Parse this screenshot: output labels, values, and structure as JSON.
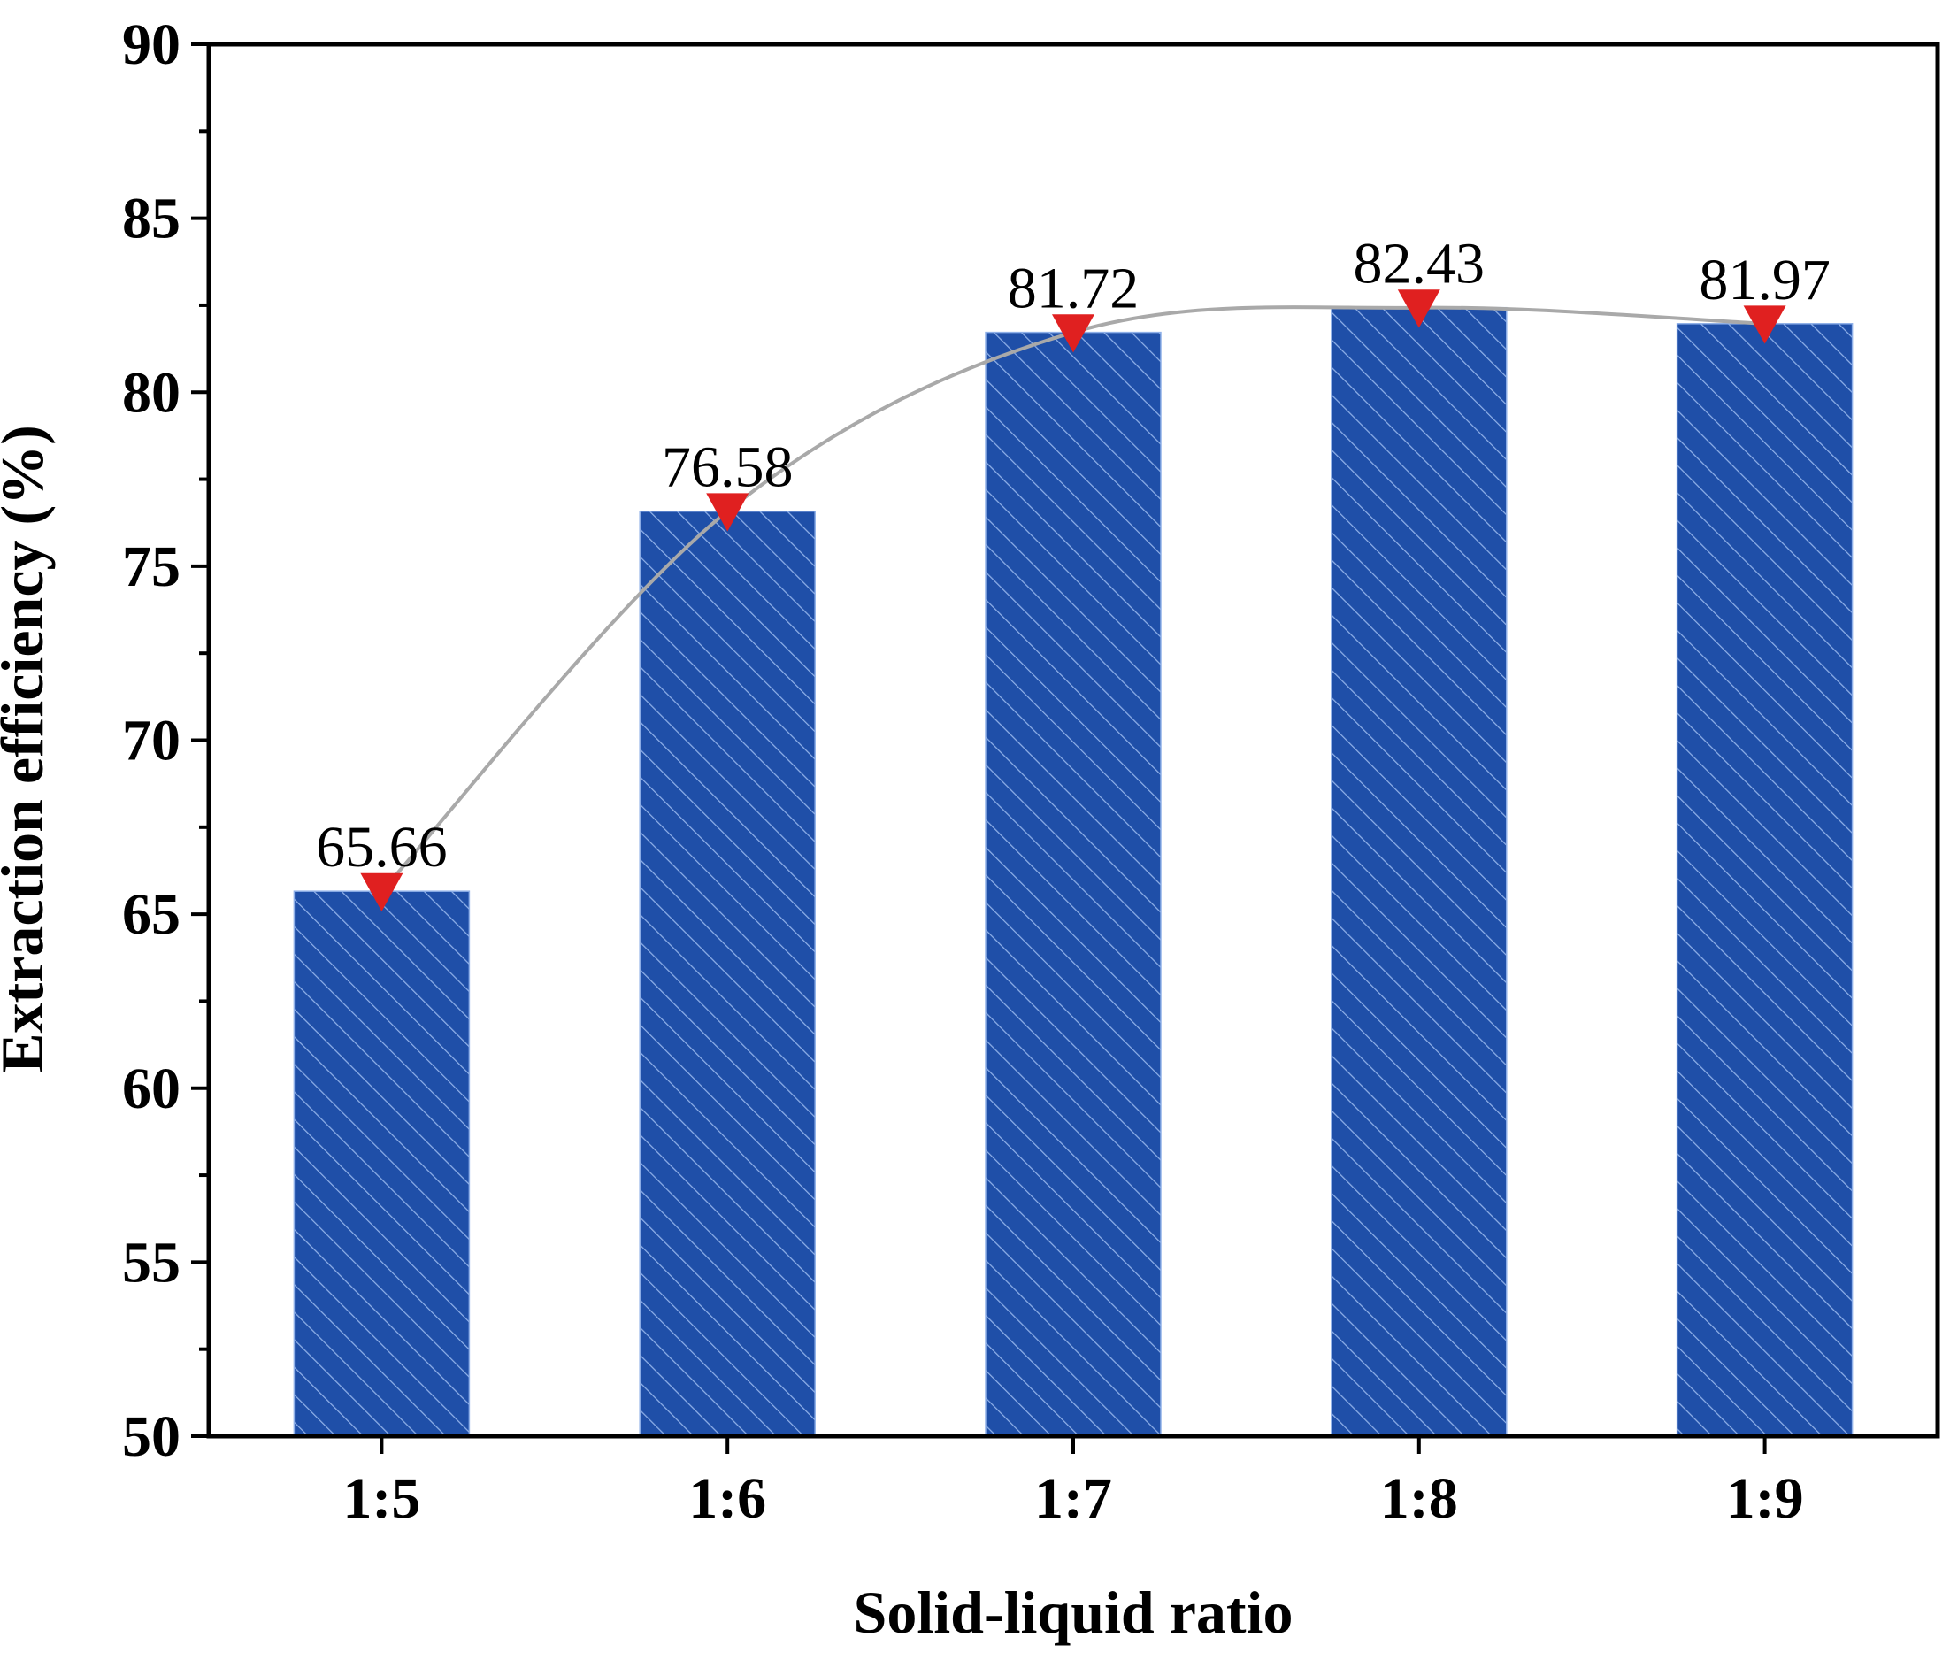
{
  "chart_data": {
    "type": "bar",
    "title": "",
    "xlabel": "Solid-liquid ratio",
    "ylabel": "Extraction efficiency (%)",
    "categories": [
      "1:5",
      "1:6",
      "1:7",
      "1:8",
      "1:9"
    ],
    "values": [
      65.66,
      76.58,
      81.72,
      82.43,
      81.97
    ],
    "data_labels": [
      "65.66",
      "76.58",
      "81.72",
      "82.43",
      "81.97"
    ],
    "ylim": [
      50,
      90
    ],
    "yticks": [
      50,
      55,
      60,
      65,
      70,
      75,
      80,
      85,
      90
    ],
    "overlay": {
      "type": "line",
      "marker": "down-triangle",
      "smooth": true
    },
    "bar_pattern": "diagonal-hatch",
    "grid": false,
    "colors": {
      "bar": "#1f4fa8",
      "hatch": "#8fb0e8",
      "line": "#a9a9a9",
      "marker": "#e02020",
      "axis": "#000000"
    }
  }
}
